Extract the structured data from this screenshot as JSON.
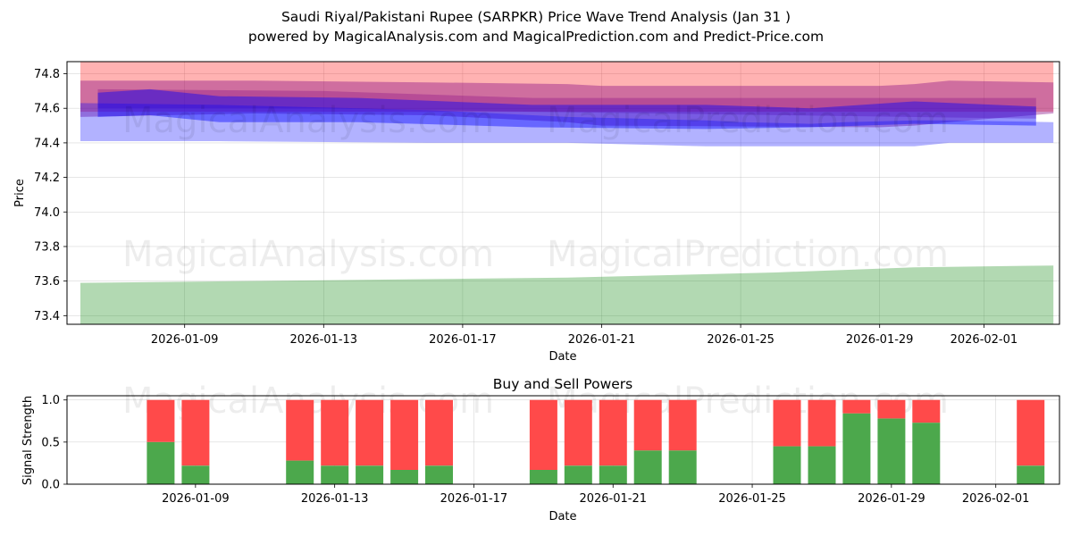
{
  "header": {
    "title": "Saudi Riyal/Pakistani Rupee (SARPKR) Price Wave Trend Analysis (Jan 31 )",
    "subtitle": "powered by MagicalAnalysis.com and MagicalPrediction.com and Predict-Price.com"
  },
  "watermarks": [
    "MagicalAnalysis.com",
    "MagicalPrediction.com"
  ],
  "colors": {
    "red_band": "#ff0000",
    "purple_band": "#800080",
    "blue_band": "#0000ff",
    "green_band": "#008000",
    "buy": "#4ca84c",
    "sell": "#ff4a4a"
  },
  "chart_data": [
    {
      "type": "area",
      "title": "",
      "xlabel": "Date",
      "ylabel": "Price",
      "ylim": [
        73.35,
        74.87
      ],
      "x_start": "2026-01-06",
      "x_ticks": [
        "2026-01-09",
        "2026-01-13",
        "2026-01-17",
        "2026-01-21",
        "2026-01-25",
        "2026-01-29",
        "2026-02-01"
      ],
      "y_ticks": [
        "73.4",
        "73.6",
        "73.8",
        "74.0",
        "74.2",
        "74.4",
        "74.6",
        "74.8"
      ],
      "grid": true,
      "bands": [
        {
          "name": "red",
          "x": [
            0,
            28
          ],
          "upper": [
            74.87,
            74.87
          ],
          "lower": [
            74.58,
            74.58
          ]
        },
        {
          "name": "purple",
          "x": [
            0,
            5,
            10,
            14,
            15,
            23,
            24,
            25,
            28
          ],
          "upper": [
            74.76,
            74.76,
            74.75,
            74.74,
            74.73,
            74.73,
            74.74,
            74.76,
            74.75
          ],
          "lower": [
            74.55,
            74.57,
            74.56,
            74.52,
            74.5,
            74.49,
            74.5,
            74.52,
            74.57
          ]
        },
        {
          "name": "purple-inner",
          "x": [
            0.5,
            7,
            13,
            27.5
          ],
          "upper": [
            74.71,
            74.7,
            74.66,
            74.66
          ],
          "lower": [
            74.6,
            74.6,
            74.58,
            74.54
          ]
        },
        {
          "name": "blue",
          "x": [
            0,
            4,
            10,
            14,
            16,
            18,
            19,
            21,
            22,
            24,
            25,
            28
          ],
          "upper": [
            74.63,
            74.62,
            74.59,
            74.55,
            74.54,
            74.53,
            74.52,
            74.51,
            74.52,
            74.53,
            74.53,
            74.52
          ],
          "lower": [
            74.41,
            74.41,
            74.4,
            74.4,
            74.39,
            74.38,
            74.38,
            74.38,
            74.38,
            74.38,
            74.4,
            74.4
          ]
        },
        {
          "name": "blue-inner",
          "x": [
            0.5,
            2,
            4,
            8,
            13,
            18,
            21,
            24,
            27.5
          ],
          "upper": [
            74.69,
            74.71,
            74.67,
            74.66,
            74.62,
            74.62,
            74.6,
            74.64,
            74.61
          ],
          "lower": [
            74.55,
            74.56,
            74.52,
            74.52,
            74.49,
            74.48,
            74.49,
            74.51,
            74.5
          ]
        },
        {
          "name": "green",
          "x": [
            0,
            14,
            20,
            24,
            28
          ],
          "upper": [
            73.59,
            73.62,
            73.65,
            73.68,
            73.69
          ],
          "lower": [
            73.35,
            73.35,
            73.35,
            73.35,
            73.35
          ]
        }
      ]
    },
    {
      "type": "bar",
      "title": "Buy and Sell Powers",
      "xlabel": "Date",
      "ylabel": "Signal Strength",
      "ylim": [
        0,
        1.05
      ],
      "y_ticks": [
        "0.0",
        "0.5",
        "1.0"
      ],
      "x_ticks": [
        "2026-01-09",
        "2026-01-13",
        "2026-01-17",
        "2026-01-21",
        "2026-01-25",
        "2026-01-29",
        "2026-02-01"
      ],
      "categories": [
        "2026-01-08",
        "2026-01-09",
        "2026-01-12",
        "2026-01-13",
        "2026-01-14",
        "2026-01-15",
        "2026-01-16",
        "2026-01-19",
        "2026-01-20",
        "2026-01-21",
        "2026-01-22",
        "2026-01-23",
        "2026-01-26",
        "2026-01-27",
        "2026-01-28",
        "2026-01-29",
        "2026-01-30",
        "2026-02-02"
      ],
      "series": [
        {
          "name": "Buy",
          "values": [
            0.5,
            0.22,
            0.28,
            0.22,
            0.22,
            0.17,
            0.22,
            0.17,
            0.22,
            0.22,
            0.4,
            0.4,
            0.45,
            0.45,
            0.84,
            0.78,
            0.73,
            0.22
          ]
        },
        {
          "name": "Sell",
          "values": [
            0.5,
            0.78,
            0.72,
            0.78,
            0.78,
            0.83,
            0.78,
            0.83,
            0.78,
            0.78,
            0.6,
            0.6,
            0.55,
            0.55,
            0.16,
            0.22,
            0.27,
            0.78
          ]
        }
      ]
    }
  ]
}
